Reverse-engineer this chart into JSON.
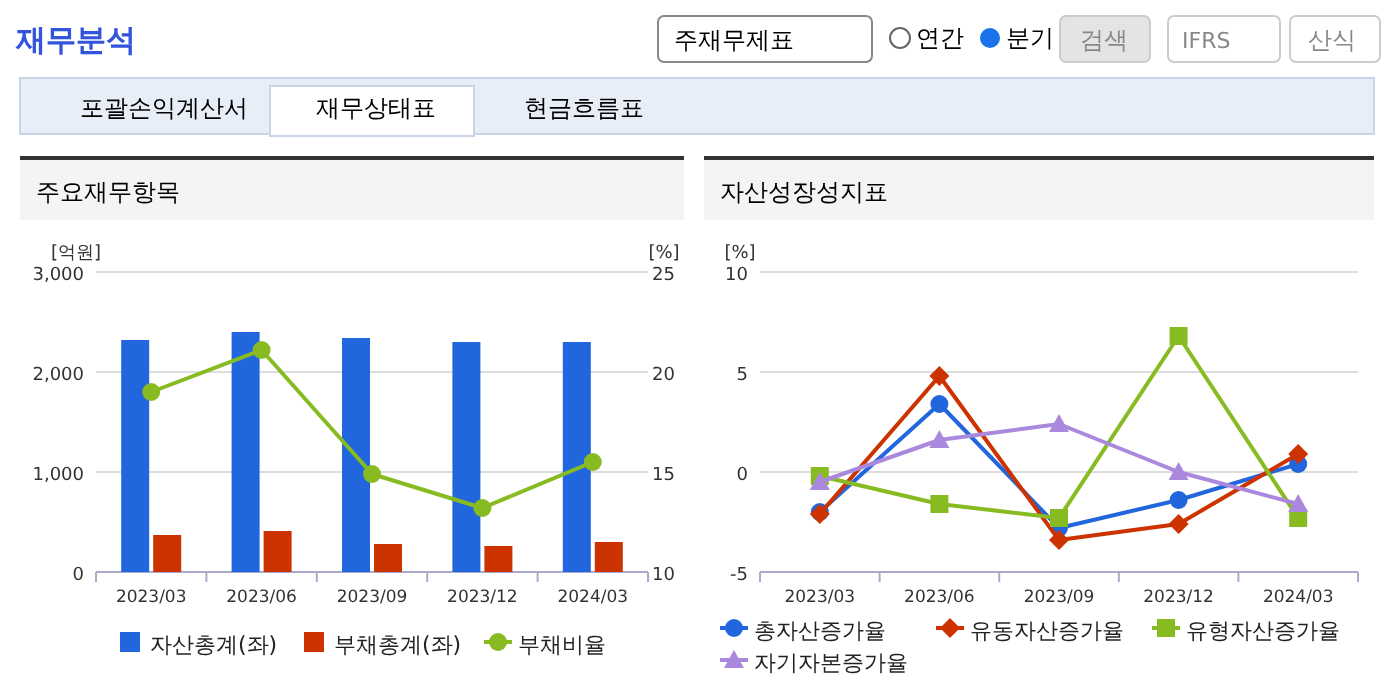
{
  "chart_data": [
    {
      "type": "bar",
      "title": "주요재무항목",
      "ylabel": "[억원]",
      "y2label": "[%]",
      "annotations": [
        "재무분석",
        "주재무제표",
        "연간",
        "분기",
        "검색",
        "IFRS",
        "산식",
        "포괄손익계산서",
        "재무상태표",
        "현금흐름표"
      ],
      "categories": [
        "2023/03",
        "2023/06",
        "2023/09",
        "2023/12",
        "2024/03"
      ],
      "series": [
        {
          "name": "자산총계(좌)",
          "color": "#2266dd",
          "values": [
            2320,
            2400,
            2340,
            2300,
            2300
          ]
        },
        {
          "name": "부채총계(좌)",
          "color": "#cc3300",
          "values": [
            370,
            410,
            280,
            260,
            300
          ]
        },
        {
          "name": "부채비율",
          "type": "line",
          "axis": "y2",
          "color": "#88bb22",
          "marker": "circle",
          "values": [
            19.0,
            21.1,
            14.9,
            13.2,
            15.5
          ]
        }
      ],
      "ylim": [
        0,
        3000
      ],
      "yticks": [
        0,
        {
          "value": 1000,
          "label": "1,000"
        },
        {
          "value": 2000,
          "label": "2,000"
        },
        {
          "value": 3000,
          "label": "3,000"
        }
      ],
      "y2lim": [
        10,
        25
      ],
      "y2ticks": [
        10,
        15,
        20,
        25
      ],
      "grid": "y",
      "legend": "bottom"
    },
    {
      "type": "line",
      "title": "자산성장성지표",
      "ylabel": "[%]",
      "categories": [
        "2023/03",
        "2023/06",
        "2023/09",
        "2023/12",
        "2024/03"
      ],
      "series": [
        {
          "name": "총자산증가율",
          "color": "#2266dd",
          "marker": "circle",
          "values": [
            -2.0,
            3.4,
            -2.8,
            -1.4,
            0.4
          ]
        },
        {
          "name": "유동자산증가율",
          "color": "#cc3300",
          "marker": "diamond",
          "values": [
            -2.1,
            4.8,
            -3.4,
            -2.6,
            0.9
          ]
        },
        {
          "name": "유형자산증가율",
          "color": "#88bb22",
          "marker": "square",
          "values": [
            -0.2,
            -1.6,
            -2.3,
            6.8,
            -2.3
          ]
        },
        {
          "name": "자기자본증가율",
          "color": "#aa88dd",
          "marker": "triangle",
          "values": [
            -0.5,
            1.6,
            2.4,
            0.0,
            -1.6
          ]
        }
      ],
      "ylim": [
        -5,
        10
      ],
      "yticks": [
        -5,
        0,
        5,
        10
      ],
      "grid": "y",
      "legend": "bottom"
    }
  ]
}
